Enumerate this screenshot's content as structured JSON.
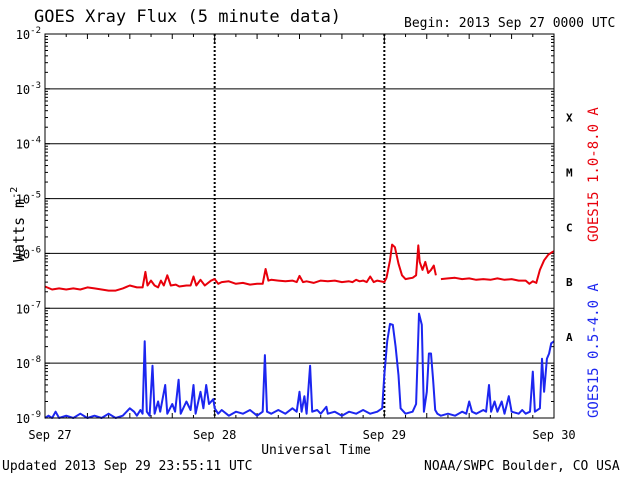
{
  "header": {
    "title": "GOES Xray Flux (5 minute data)",
    "begin": "Begin:  2013 Sep 27 0000 UTC"
  },
  "footer": {
    "updated": "Updated 2013 Sep 29 23:55:11 UTC",
    "credit": "NOAA/SWPC Boulder, CO USA"
  },
  "chart_data": {
    "type": "line",
    "title": "GOES Xray Flux (5 minute data)",
    "xlabel": "Universal Time",
    "ylabel": "Watts m",
    "ylabel_superscript": "-2",
    "y_scale": "log",
    "ylim": [
      1e-09,
      0.01
    ],
    "xlim_hours": [
      0,
      72
    ],
    "x_ticks": [
      {
        "label": "Sep 27",
        "hour": 0
      },
      {
        "label": "Sep 28",
        "hour": 24
      },
      {
        "label": "Sep 29",
        "hour": 48
      },
      {
        "label": "Sep 30",
        "hour": 72
      }
    ],
    "y_ticks": [
      {
        "base": "10",
        "exp": "-2",
        "value": 0.01
      },
      {
        "base": "10",
        "exp": "-3",
        "value": 0.001
      },
      {
        "base": "10",
        "exp": "-4",
        "value": 0.0001
      },
      {
        "base": "10",
        "exp": "-5",
        "value": 1e-05
      },
      {
        "base": "10",
        "exp": "-6",
        "value": 1e-06
      },
      {
        "base": "10",
        "exp": "-7",
        "value": 1e-07
      },
      {
        "base": "10",
        "exp": "-8",
        "value": 1e-08
      },
      {
        "base": "10",
        "exp": "-9",
        "value": 1e-09
      }
    ],
    "flare_classes": [
      {
        "label": "X",
        "value": 0.0003
      },
      {
        "label": "M",
        "value": 3e-05
      },
      {
        "label": "C",
        "value": 3e-06
      },
      {
        "label": "B",
        "value": 3e-07
      },
      {
        "label": "A",
        "value": 3e-08
      }
    ],
    "grid": "horizontal lines at each decade; dashed vertical lines at each day",
    "legend_placement": "right, vertical",
    "series": [
      {
        "name": "GOES15 1.0-8.0 A",
        "color": "#e8000b",
        "points": [
          [
            0,
            2.5e-07
          ],
          [
            1,
            2.2e-07
          ],
          [
            2,
            2.3e-07
          ],
          [
            3,
            2.2e-07
          ],
          [
            4,
            2.3e-07
          ],
          [
            5,
            2.2e-07
          ],
          [
            6,
            2.4e-07
          ],
          [
            7,
            2.3e-07
          ],
          [
            8,
            2.2e-07
          ],
          [
            9,
            2.1e-07
          ],
          [
            10,
            2.1e-07
          ],
          [
            11,
            2.3e-07
          ],
          [
            12,
            2.6e-07
          ],
          [
            13,
            2.4e-07
          ],
          [
            13.8,
            2.4e-07
          ],
          [
            14.2,
            4.6e-07
          ],
          [
            14.5,
            2.6e-07
          ],
          [
            15,
            3.2e-07
          ],
          [
            15.5,
            2.6e-07
          ],
          [
            16,
            2.4e-07
          ],
          [
            16.4,
            3.2e-07
          ],
          [
            16.8,
            2.6e-07
          ],
          [
            17.3,
            4e-07
          ],
          [
            17.8,
            2.6e-07
          ],
          [
            18.5,
            2.7e-07
          ],
          [
            19,
            2.5e-07
          ],
          [
            20,
            2.6e-07
          ],
          [
            20.6,
            2.6e-07
          ],
          [
            21,
            3.8e-07
          ],
          [
            21.4,
            2.6e-07
          ],
          [
            22,
            3.3e-07
          ],
          [
            22.6,
            2.6e-07
          ],
          [
            23.5,
            3.2e-07
          ],
          [
            24,
            3.4e-07
          ],
          [
            24.5,
            2.8e-07
          ],
          [
            25,
            3e-07
          ],
          [
            26,
            3.1e-07
          ],
          [
            27,
            2.8e-07
          ],
          [
            28,
            2.9e-07
          ],
          [
            29,
            2.7e-07
          ],
          [
            30,
            2.8e-07
          ],
          [
            30.8,
            2.8e-07
          ],
          [
            31.2,
            5.2e-07
          ],
          [
            31.6,
            3.2e-07
          ],
          [
            32,
            3.3e-07
          ],
          [
            33,
            3.2e-07
          ],
          [
            34,
            3.1e-07
          ],
          [
            35,
            3.2e-07
          ],
          [
            35.6,
            3e-07
          ],
          [
            36,
            3.9e-07
          ],
          [
            36.5,
            3e-07
          ],
          [
            37,
            3.1e-07
          ],
          [
            38,
            2.9e-07
          ],
          [
            39,
            3.2e-07
          ],
          [
            40,
            3.1e-07
          ],
          [
            41,
            3.2e-07
          ],
          [
            42,
            3e-07
          ],
          [
            43,
            3.1e-07
          ],
          [
            43.5,
            3e-07
          ],
          [
            44,
            3.3e-07
          ],
          [
            44.5,
            3.1e-07
          ],
          [
            45,
            3.2e-07
          ],
          [
            45.5,
            3e-07
          ],
          [
            46,
            3.8e-07
          ],
          [
            46.5,
            3e-07
          ],
          [
            47,
            3.2e-07
          ],
          [
            48,
            3e-07
          ],
          [
            48.3,
            3.6e-07
          ],
          [
            48.8,
            7.5e-07
          ],
          [
            49.1,
            1.45e-06
          ],
          [
            49.5,
            1.3e-06
          ],
          [
            50,
            6.5e-07
          ],
          [
            50.5,
            4e-07
          ],
          [
            51,
            3.4e-07
          ],
          [
            51.5,
            3.5e-07
          ],
          [
            52,
            3.6e-07
          ],
          [
            52.5,
            4e-07
          ],
          [
            52.8,
            1.4e-06
          ],
          [
            53,
            7e-07
          ],
          [
            53.4,
            5e-07
          ],
          [
            53.8,
            7e-07
          ],
          [
            54.2,
            4.4e-07
          ],
          [
            54.6,
            5e-07
          ],
          [
            55,
            6e-07
          ],
          [
            55.3,
            4e-07
          ],
          [
            null,
            null
          ],
          [
            56,
            3.4e-07
          ],
          [
            57,
            3.5e-07
          ],
          [
            58,
            3.6e-07
          ],
          [
            59,
            3.4e-07
          ],
          [
            60,
            3.5e-07
          ],
          [
            61,
            3.3e-07
          ],
          [
            62,
            3.4e-07
          ],
          [
            63,
            3.3e-07
          ],
          [
            64,
            3.5e-07
          ],
          [
            65,
            3.3e-07
          ],
          [
            66,
            3.4e-07
          ],
          [
            67,
            3.2e-07
          ],
          [
            68,
            3.2e-07
          ],
          [
            68.5,
            2.8e-07
          ],
          [
            69,
            3.1e-07
          ],
          [
            69.5,
            2.9e-07
          ],
          [
            70,
            5e-07
          ],
          [
            70.6,
            7.5e-07
          ],
          [
            71.2,
            9.5e-07
          ],
          [
            71.7,
            1.05e-06
          ],
          [
            72,
            1.1e-06
          ]
        ]
      },
      {
        "name": "GOES15 0.5-4.0 A",
        "color": "#1c26f0",
        "points": [
          [
            0,
            1e-09
          ],
          [
            0.5,
            1.1e-09
          ],
          [
            1,
            1e-09
          ],
          [
            1.5,
            1.3e-09
          ],
          [
            2,
            1e-09
          ],
          [
            3,
            1.1e-09
          ],
          [
            4,
            1e-09
          ],
          [
            5,
            1.2e-09
          ],
          [
            6,
            1e-09
          ],
          [
            7,
            1.1e-09
          ],
          [
            8,
            1e-09
          ],
          [
            9,
            1.2e-09
          ],
          [
            10,
            1e-09
          ],
          [
            11,
            1.1e-09
          ],
          [
            12,
            1.5e-09
          ],
          [
            12.6,
            1.3e-09
          ],
          [
            13,
            1.1e-09
          ],
          [
            13.5,
            1.4e-09
          ],
          [
            13.8,
            1.2e-09
          ],
          [
            14.1,
            2.5e-08
          ],
          [
            14.4,
            1.3e-09
          ],
          [
            14.8,
            1.1e-09
          ],
          [
            15.2,
            9e-09
          ],
          [
            15.5,
            1.2e-09
          ],
          [
            16,
            2e-09
          ],
          [
            16.3,
            1.3e-09
          ],
          [
            17,
            4e-09
          ],
          [
            17.3,
            1.2e-09
          ],
          [
            18,
            1.8e-09
          ],
          [
            18.4,
            1.3e-09
          ],
          [
            18.9,
            5e-09
          ],
          [
            19.2,
            1.2e-09
          ],
          [
            20,
            2e-09
          ],
          [
            20.6,
            1.4e-09
          ],
          [
            21,
            4e-09
          ],
          [
            21.3,
            1.2e-09
          ],
          [
            22,
            3e-09
          ],
          [
            22.4,
            1.5e-09
          ],
          [
            22.8,
            4e-09
          ],
          [
            23.2,
            1.8e-09
          ],
          [
            23.8,
            2.2e-09
          ],
          [
            24,
            1.5e-09
          ],
          [
            24.5,
            1.2e-09
          ],
          [
            25,
            1.4e-09
          ],
          [
            26,
            1.1e-09
          ],
          [
            27,
            1.3e-09
          ],
          [
            28,
            1.2e-09
          ],
          [
            29,
            1.4e-09
          ],
          [
            30,
            1.1e-09
          ],
          [
            30.8,
            1.3e-09
          ],
          [
            31.1,
            1.4e-08
          ],
          [
            31.4,
            1.3e-09
          ],
          [
            32,
            1.2e-09
          ],
          [
            33,
            1.4e-09
          ],
          [
            34,
            1.2e-09
          ],
          [
            35,
            1.5e-09
          ],
          [
            35.6,
            1.3e-09
          ],
          [
            36,
            3e-09
          ],
          [
            36.3,
            1.3e-09
          ],
          [
            36.7,
            2.5e-09
          ],
          [
            37,
            1.2e-09
          ],
          [
            37.5,
            9e-09
          ],
          [
            37.8,
            1.3e-09
          ],
          [
            38.5,
            1.4e-09
          ],
          [
            39,
            1.2e-09
          ],
          [
            39.8,
            1.6e-09
          ],
          [
            40,
            1.2e-09
          ],
          [
            41,
            1.3e-09
          ],
          [
            42,
            1.1e-09
          ],
          [
            43,
            1.3e-09
          ],
          [
            44,
            1.2e-09
          ],
          [
            45,
            1.4e-09
          ],
          [
            46,
            1.2e-09
          ],
          [
            47,
            1.3e-09
          ],
          [
            47.7,
            1.5e-09
          ],
          [
            48,
            6e-09
          ],
          [
            48.4,
            2.5e-08
          ],
          [
            48.8,
            5.2e-08
          ],
          [
            49.2,
            5e-08
          ],
          [
            49.6,
            2e-08
          ],
          [
            50,
            6e-09
          ],
          [
            50.3,
            1.5e-09
          ],
          [
            51,
            1.2e-09
          ],
          [
            52,
            1.3e-09
          ],
          [
            52.5,
            1.8e-09
          ],
          [
            52.9,
            8e-08
          ],
          [
            53.3,
            5e-08
          ],
          [
            53.6,
            1.3e-09
          ],
          [
            54,
            3e-09
          ],
          [
            54.3,
            1.5e-08
          ],
          [
            54.6,
            1.5e-08
          ],
          [
            54.9,
            5e-09
          ],
          [
            55.2,
            1.4e-09
          ],
          [
            55.5,
            1.2e-09
          ],
          [
            56,
            1.1e-09
          ],
          [
            57,
            1.2e-09
          ],
          [
            58,
            1.1e-09
          ],
          [
            59,
            1.3e-09
          ],
          [
            59.6,
            1.2e-09
          ],
          [
            60,
            2e-09
          ],
          [
            60.4,
            1.3e-09
          ],
          [
            61,
            1.2e-09
          ],
          [
            62,
            1.4e-09
          ],
          [
            62.4,
            1.3e-09
          ],
          [
            62.8,
            4e-09
          ],
          [
            63.1,
            1.3e-09
          ],
          [
            63.6,
            2e-09
          ],
          [
            64,
            1.3e-09
          ],
          [
            64.6,
            2e-09
          ],
          [
            65,
            1.2e-09
          ],
          [
            65.6,
            2.5e-09
          ],
          [
            66,
            1.3e-09
          ],
          [
            67,
            1.2e-09
          ],
          [
            67.5,
            1.4e-09
          ],
          [
            68,
            1.2e-09
          ],
          [
            68.6,
            1.3e-09
          ],
          [
            69,
            7e-09
          ],
          [
            69.3,
            1.3e-09
          ],
          [
            70,
            1.5e-09
          ],
          [
            70.3,
            1.2e-08
          ],
          [
            70.6,
            3e-09
          ],
          [
            71,
            1.2e-08
          ],
          [
            71.3,
            1.5e-08
          ],
          [
            71.6,
            2.3e-08
          ],
          [
            72,
            2.5e-08
          ]
        ]
      }
    ]
  }
}
